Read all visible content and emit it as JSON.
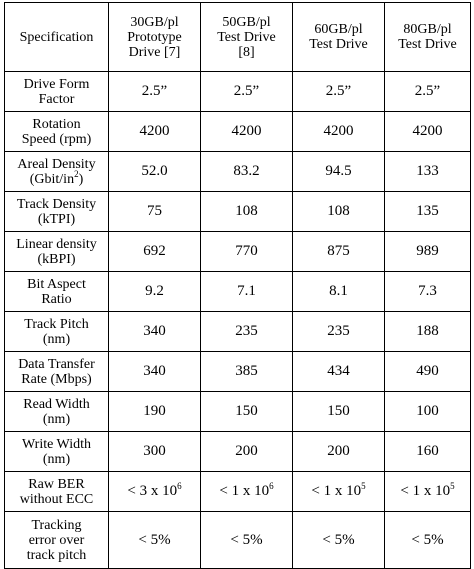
{
  "table": {
    "headers": [
      {
        "lines": [
          "Specification"
        ]
      },
      {
        "lines": [
          "30GB/pl",
          "Prototype",
          "Drive [7]"
        ]
      },
      {
        "lines": [
          "50GB/pl",
          "Test Drive",
          "[8]"
        ]
      },
      {
        "lines": [
          "60GB/pl",
          "Test Drive"
        ]
      },
      {
        "lines": [
          "80GB/pl",
          "Test Drive"
        ]
      }
    ],
    "rows": [
      {
        "label": [
          "Drive Form",
          "Factor"
        ],
        "values": [
          "2.5”",
          "2.5”",
          "2.5”",
          "2.5”"
        ]
      },
      {
        "label": [
          "Rotation",
          "Speed (rpm)"
        ],
        "values": [
          "4200",
          "4200",
          "4200",
          "4200"
        ]
      },
      {
        "label": [
          "Areal Density",
          "(Gbit/in",
          "2",
          ")"
        ],
        "values": [
          "52.0",
          "83.2",
          "94.5",
          "133"
        ]
      },
      {
        "label": [
          "Track Density",
          "(kTPI)"
        ],
        "values": [
          "75",
          "108",
          "108",
          "135"
        ]
      },
      {
        "label": [
          "Linear density",
          "(kBPI)"
        ],
        "values": [
          "692",
          "770",
          "875",
          "989"
        ]
      },
      {
        "label": [
          "Bit Aspect",
          "Ratio"
        ],
        "values": [
          "9.2",
          "7.1",
          "8.1",
          "7.3"
        ]
      },
      {
        "label": [
          "Track Pitch",
          "(nm)"
        ],
        "values": [
          "340",
          "235",
          "235",
          "188"
        ]
      },
      {
        "label": [
          "Data Transfer",
          "Rate (Mbps)"
        ],
        "values": [
          "340",
          "385",
          "434",
          "490"
        ]
      },
      {
        "label": [
          "Read Width",
          "(nm)"
        ],
        "values": [
          "190",
          "150",
          "150",
          "100"
        ]
      },
      {
        "label": [
          "Write Width",
          "(nm)"
        ],
        "values": [
          "300",
          "200",
          "200",
          "160"
        ]
      },
      {
        "label": [
          "Raw BER",
          "without ECC"
        ],
        "values": [
          {
            "base": "< 3 x 10",
            "exp": "6"
          },
          {
            "base": "< 1 x 10",
            "exp": "6"
          },
          {
            "base": "< 1 x 10",
            "exp": "5"
          },
          {
            "base": "< 1 x 10",
            "exp": "5"
          }
        ]
      },
      {
        "label": [
          "Tracking",
          "error over",
          "track pitch"
        ],
        "values": [
          "< 5%",
          "< 5%",
          "< 5%",
          "< 5%"
        ]
      }
    ]
  }
}
